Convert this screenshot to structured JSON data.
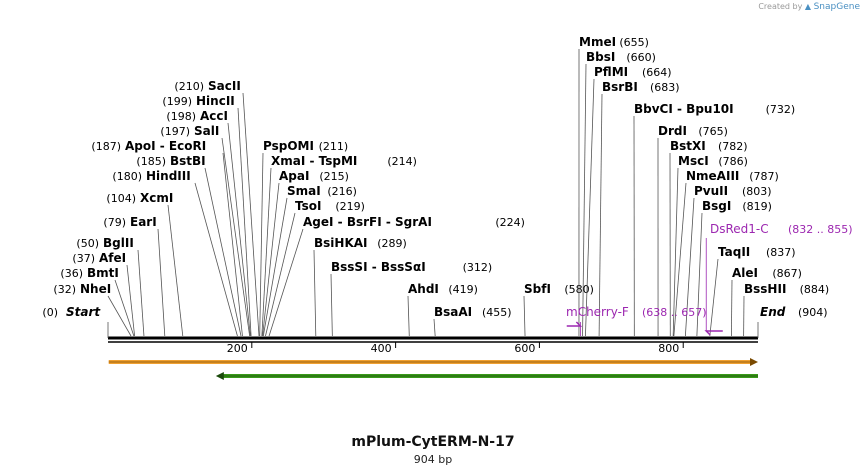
{
  "credit": {
    "prefix": "Created by",
    "brand": "SnapGene"
  },
  "plasmid": {
    "name": "mPlum-CytERM-N-17",
    "length_label": "904 bp",
    "length": 904
  },
  "colors": {
    "feature": "#9c27b0",
    "orange_arrow": "#f0a030",
    "green_arrow": "#3a9a1a",
    "backbone": "#000000"
  },
  "ruler": {
    "ticks": [
      200,
      400,
      600,
      800
    ]
  },
  "ends": {
    "start": {
      "label": "Start",
      "pos": 0
    },
    "end": {
      "label": "End",
      "pos": 904
    }
  },
  "sites": [
    {
      "name": "NheI",
      "pos": 32
    },
    {
      "name": "BmtI",
      "pos": 36
    },
    {
      "name": "AfeI",
      "pos": 37
    },
    {
      "name": "BglII",
      "pos": 50
    },
    {
      "name": "EarI",
      "pos": 79
    },
    {
      "name": "XcmI",
      "pos": 104
    },
    {
      "name": "HindIII",
      "pos": 180
    },
    {
      "name": "BstBI",
      "pos": 185
    },
    {
      "name": "ApoI  -  EcoRI",
      "pos": 187
    },
    {
      "name": "SalI",
      "pos": 197
    },
    {
      "name": "AccI",
      "pos": 198
    },
    {
      "name": "HincII",
      "pos": 199
    },
    {
      "name": "SacII",
      "pos": 210
    },
    {
      "name": "PspOMI",
      "pos": 211
    },
    {
      "name": "XmaI  -  TspMI",
      "pos": 214
    },
    {
      "name": "ApaI",
      "pos": 215
    },
    {
      "name": "SmaI",
      "pos": 216
    },
    {
      "name": "TsoI",
      "pos": 219
    },
    {
      "name": "AgeI  -  BsrFI  -  SgrAI",
      "pos": 224
    },
    {
      "name": "BsiHKAI",
      "pos": 289
    },
    {
      "name": "BssSI  -  BssSαI",
      "pos": 312
    },
    {
      "name": "AhdI",
      "pos": 419
    },
    {
      "name": "BsaAI",
      "pos": 455
    },
    {
      "name": "SbfI",
      "pos": 580
    },
    {
      "name": "MmeI",
      "pos": 655
    },
    {
      "name": "BbsI",
      "pos": 660
    },
    {
      "name": "PflMI",
      "pos": 664
    },
    {
      "name": "BsrBI",
      "pos": 683
    },
    {
      "name": "BbvCI  -  Bpu10I",
      "pos": 732
    },
    {
      "name": "DrdI",
      "pos": 765
    },
    {
      "name": "BstXI",
      "pos": 782
    },
    {
      "name": "MscI",
      "pos": 786
    },
    {
      "name": "NmeAIII",
      "pos": 787
    },
    {
      "name": "PvuII",
      "pos": 803
    },
    {
      "name": "BsgI",
      "pos": 819
    },
    {
      "name": "TaqII",
      "pos": 837
    },
    {
      "name": "AleI",
      "pos": 867
    },
    {
      "name": "BssHII",
      "pos": 884
    }
  ],
  "primers": [
    {
      "name": "mCherry-F",
      "range": "(638 .. 657)",
      "start": 638,
      "end": 657
    },
    {
      "name": "DsRed1-C",
      "range": "(832 .. 855)",
      "start": 832,
      "end": 855
    }
  ],
  "features": [
    {
      "name": "orange-feature",
      "start": 1,
      "end": 904,
      "direction": "forward",
      "color": "#f0a030"
    },
    {
      "name": "green-feature",
      "start": 150,
      "end": 904,
      "direction": "reverse",
      "color": "#3a9a1a"
    }
  ]
}
